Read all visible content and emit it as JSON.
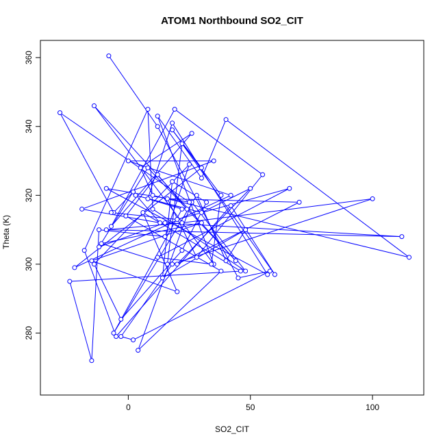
{
  "chart_data": {
    "type": "line",
    "title": "ATOM1 Northbound SO2_CIT",
    "xlabel": "SO2_CIT",
    "ylabel": "Theta (K)",
    "xlim": [
      -36,
      121
    ],
    "ylim": [
      262,
      365
    ],
    "xticks": [
      0,
      50,
      100
    ],
    "yticks": [
      280,
      300,
      320,
      340,
      360
    ],
    "grid": false,
    "legend": "none",
    "colors": {
      "series": "#0000ff",
      "axes": "#000000",
      "background": "#ffffff"
    },
    "marker": "open-circle",
    "series": [
      {
        "x": [
          -8,
          12,
          45,
          58,
          2,
          -3,
          18,
          100,
          22,
          -9,
          112,
          15,
          -12,
          8,
          44,
          -14,
          35,
          12,
          30,
          40,
          115,
          10,
          5,
          26,
          -7,
          19,
          55,
          28,
          16,
          70,
          20,
          50,
          30,
          3,
          24,
          12,
          -1,
          38,
          4,
          26,
          48,
          10,
          8,
          -18,
          -5,
          42,
          60,
          22,
          16,
          -11,
          30,
          -15,
          20,
          6,
          46,
          -24,
          -15,
          -12,
          15,
          25,
          -14,
          -3,
          22,
          32,
          18,
          14,
          48,
          40,
          28,
          -6,
          22,
          8,
          18,
          57,
          -9,
          25,
          -28,
          -6,
          2,
          13,
          -19,
          35,
          0,
          42,
          -22,
          30,
          18,
          38,
          34,
          12,
          66,
          20,
          -7
        ],
        "y": [
          360.5,
          340,
          296,
          298,
          278,
          279,
          300,
          319,
          312,
          310,
          308,
          312,
          305,
          328,
          301,
          346,
          300,
          343,
          325,
          342,
          302,
          320,
          328,
          338,
          311,
          345,
          326,
          302,
          319,
          318,
          300,
          322,
          315,
          320,
          316,
          326,
          314,
          298,
          275,
          318,
          298,
          316,
          345,
          304,
          279,
          317,
          297,
          335,
          300,
          306,
          312,
          301,
          292,
          315,
          298,
          295,
          272,
          310,
          308,
          329,
          300,
          284,
          304,
          318,
          324,
          296,
          310,
          301,
          320,
          280,
          316,
          319,
          341,
          297,
          322,
          318,
          344,
          315,
          321,
          312,
          316,
          330,
          330,
          320,
          299,
          328,
          339,
          320,
          300,
          302,
          322,
          313,
          315
        ]
      }
    ]
  }
}
